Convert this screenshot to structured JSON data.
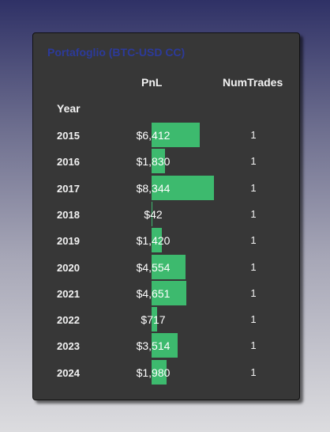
{
  "title": "Portafoglio (BTC-USD CC)",
  "headers": {
    "pnl": "PnL",
    "num_trades": "NumTrades",
    "year": "Year"
  },
  "colors": {
    "bar": "#3dba6e",
    "card": "#373737",
    "title": "#2c3a9a"
  },
  "rows": [
    {
      "year": "2015",
      "pnl": "$6,412",
      "pnl_value": 6412,
      "num_trades": "1"
    },
    {
      "year": "2016",
      "pnl": "$1,830",
      "pnl_value": 1830,
      "num_trades": "1"
    },
    {
      "year": "2017",
      "pnl": "$8,344",
      "pnl_value": 8344,
      "num_trades": "1"
    },
    {
      "year": "2018",
      "pnl": "$42",
      "pnl_value": 42,
      "num_trades": "1"
    },
    {
      "year": "2019",
      "pnl": "$1,420",
      "pnl_value": 1420,
      "num_trades": "1"
    },
    {
      "year": "2020",
      "pnl": "$4,554",
      "pnl_value": 4554,
      "num_trades": "1"
    },
    {
      "year": "2021",
      "pnl": "$4,651",
      "pnl_value": 4651,
      "num_trades": "1"
    },
    {
      "year": "2022",
      "pnl": "$717",
      "pnl_value": 717,
      "num_trades": "1"
    },
    {
      "year": "2023",
      "pnl": "$3,514",
      "pnl_value": 3514,
      "num_trades": "1"
    },
    {
      "year": "2024",
      "pnl": "$1,980",
      "pnl_value": 1980,
      "num_trades": "1"
    }
  ]
}
